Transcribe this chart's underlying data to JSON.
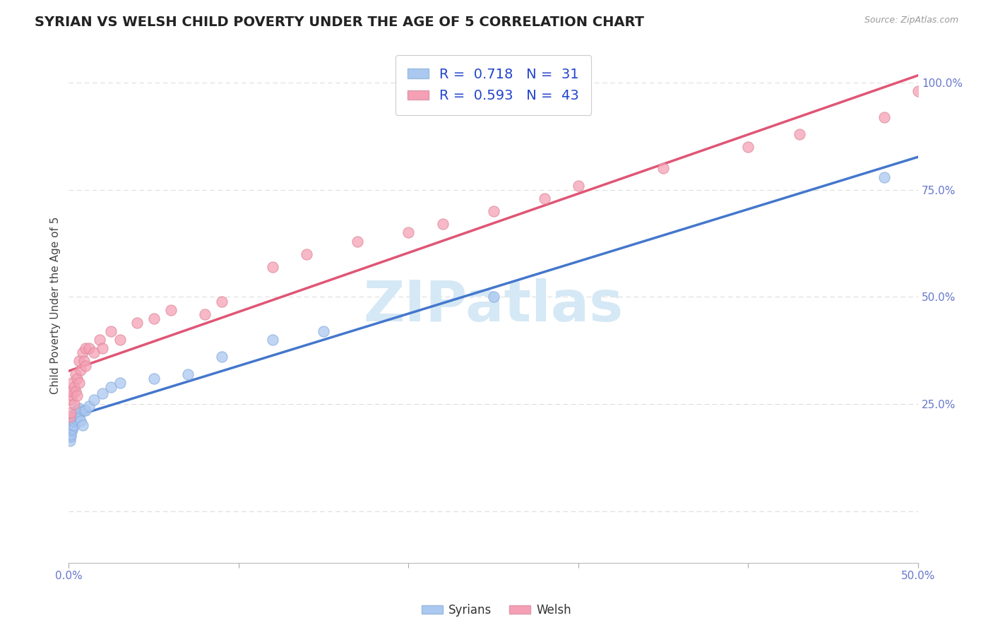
{
  "title": "SYRIAN VS WELSH CHILD POVERTY UNDER THE AGE OF 5 CORRELATION CHART",
  "source": "Source: ZipAtlas.com",
  "ylabel": "Child Poverty Under the Age of 5",
  "R_syrian": 0.718,
  "N_syrian": 31,
  "R_welsh": 0.593,
  "N_welsh": 43,
  "color_syrian": "#aac8f0",
  "color_welsh": "#f5a0b5",
  "line_color_syrian": "#4477cc",
  "line_color_welsh": "#e05575",
  "xlim": [
    0.0,
    0.5
  ],
  "ylim": [
    -0.12,
    1.08
  ],
  "xtick_vals": [
    0.0,
    0.1,
    0.2,
    0.3,
    0.4,
    0.5
  ],
  "ytick_vals": [
    0.0,
    0.25,
    0.5,
    0.75,
    1.0
  ],
  "ytick_labels": [
    "",
    "25.0%",
    "50.0%",
    "75.0%",
    "100.0%"
  ],
  "xtick_labels": [
    "0.0%",
    "",
    "",
    "",
    "",
    "50.0%"
  ],
  "background_color": "#ffffff",
  "grid_color": "#dddddd",
  "title_fontsize": 14,
  "label_fontsize": 11,
  "tick_fontsize": 11,
  "syrian_x": [
    0.0005,
    0.001,
    0.001,
    0.002,
    0.002,
    0.002,
    0.003,
    0.003,
    0.003,
    0.004,
    0.004,
    0.005,
    0.005,
    0.006,
    0.006,
    0.007,
    0.008,
    0.009,
    0.01,
    0.012,
    0.015,
    0.02,
    0.025,
    0.03,
    0.05,
    0.07,
    0.09,
    0.12,
    0.15,
    0.25,
    0.48
  ],
  "syrian_y": [
    0.165,
    0.175,
    0.18,
    0.19,
    0.195,
    0.2,
    0.2,
    0.21,
    0.22,
    0.215,
    0.23,
    0.22,
    0.235,
    0.22,
    0.24,
    0.21,
    0.2,
    0.235,
    0.235,
    0.245,
    0.26,
    0.275,
    0.29,
    0.3,
    0.31,
    0.32,
    0.36,
    0.4,
    0.42,
    0.5,
    0.78
  ],
  "welsh_x": [
    0.0005,
    0.001,
    0.001,
    0.002,
    0.002,
    0.002,
    0.003,
    0.003,
    0.004,
    0.004,
    0.005,
    0.005,
    0.006,
    0.006,
    0.007,
    0.008,
    0.009,
    0.01,
    0.01,
    0.012,
    0.015,
    0.018,
    0.02,
    0.025,
    0.03,
    0.04,
    0.05,
    0.06,
    0.08,
    0.09,
    0.12,
    0.14,
    0.17,
    0.2,
    0.22,
    0.25,
    0.28,
    0.3,
    0.35,
    0.4,
    0.43,
    0.48,
    0.5
  ],
  "welsh_y": [
    0.22,
    0.23,
    0.26,
    0.27,
    0.28,
    0.3,
    0.25,
    0.29,
    0.28,
    0.32,
    0.27,
    0.31,
    0.35,
    0.3,
    0.33,
    0.37,
    0.35,
    0.34,
    0.38,
    0.38,
    0.37,
    0.4,
    0.38,
    0.42,
    0.4,
    0.44,
    0.45,
    0.47,
    0.46,
    0.49,
    0.57,
    0.6,
    0.63,
    0.65,
    0.67,
    0.7,
    0.73,
    0.76,
    0.8,
    0.85,
    0.88,
    0.92,
    0.98
  ],
  "watermark_text": "ZIPatlas",
  "watermark_color": "#d5e8f5",
  "legend_label_1": "R =  0.718   N =  31",
  "legend_label_2": "R =  0.593   N =  43",
  "bottom_label_1": "Syrians",
  "bottom_label_2": "Welsh"
}
